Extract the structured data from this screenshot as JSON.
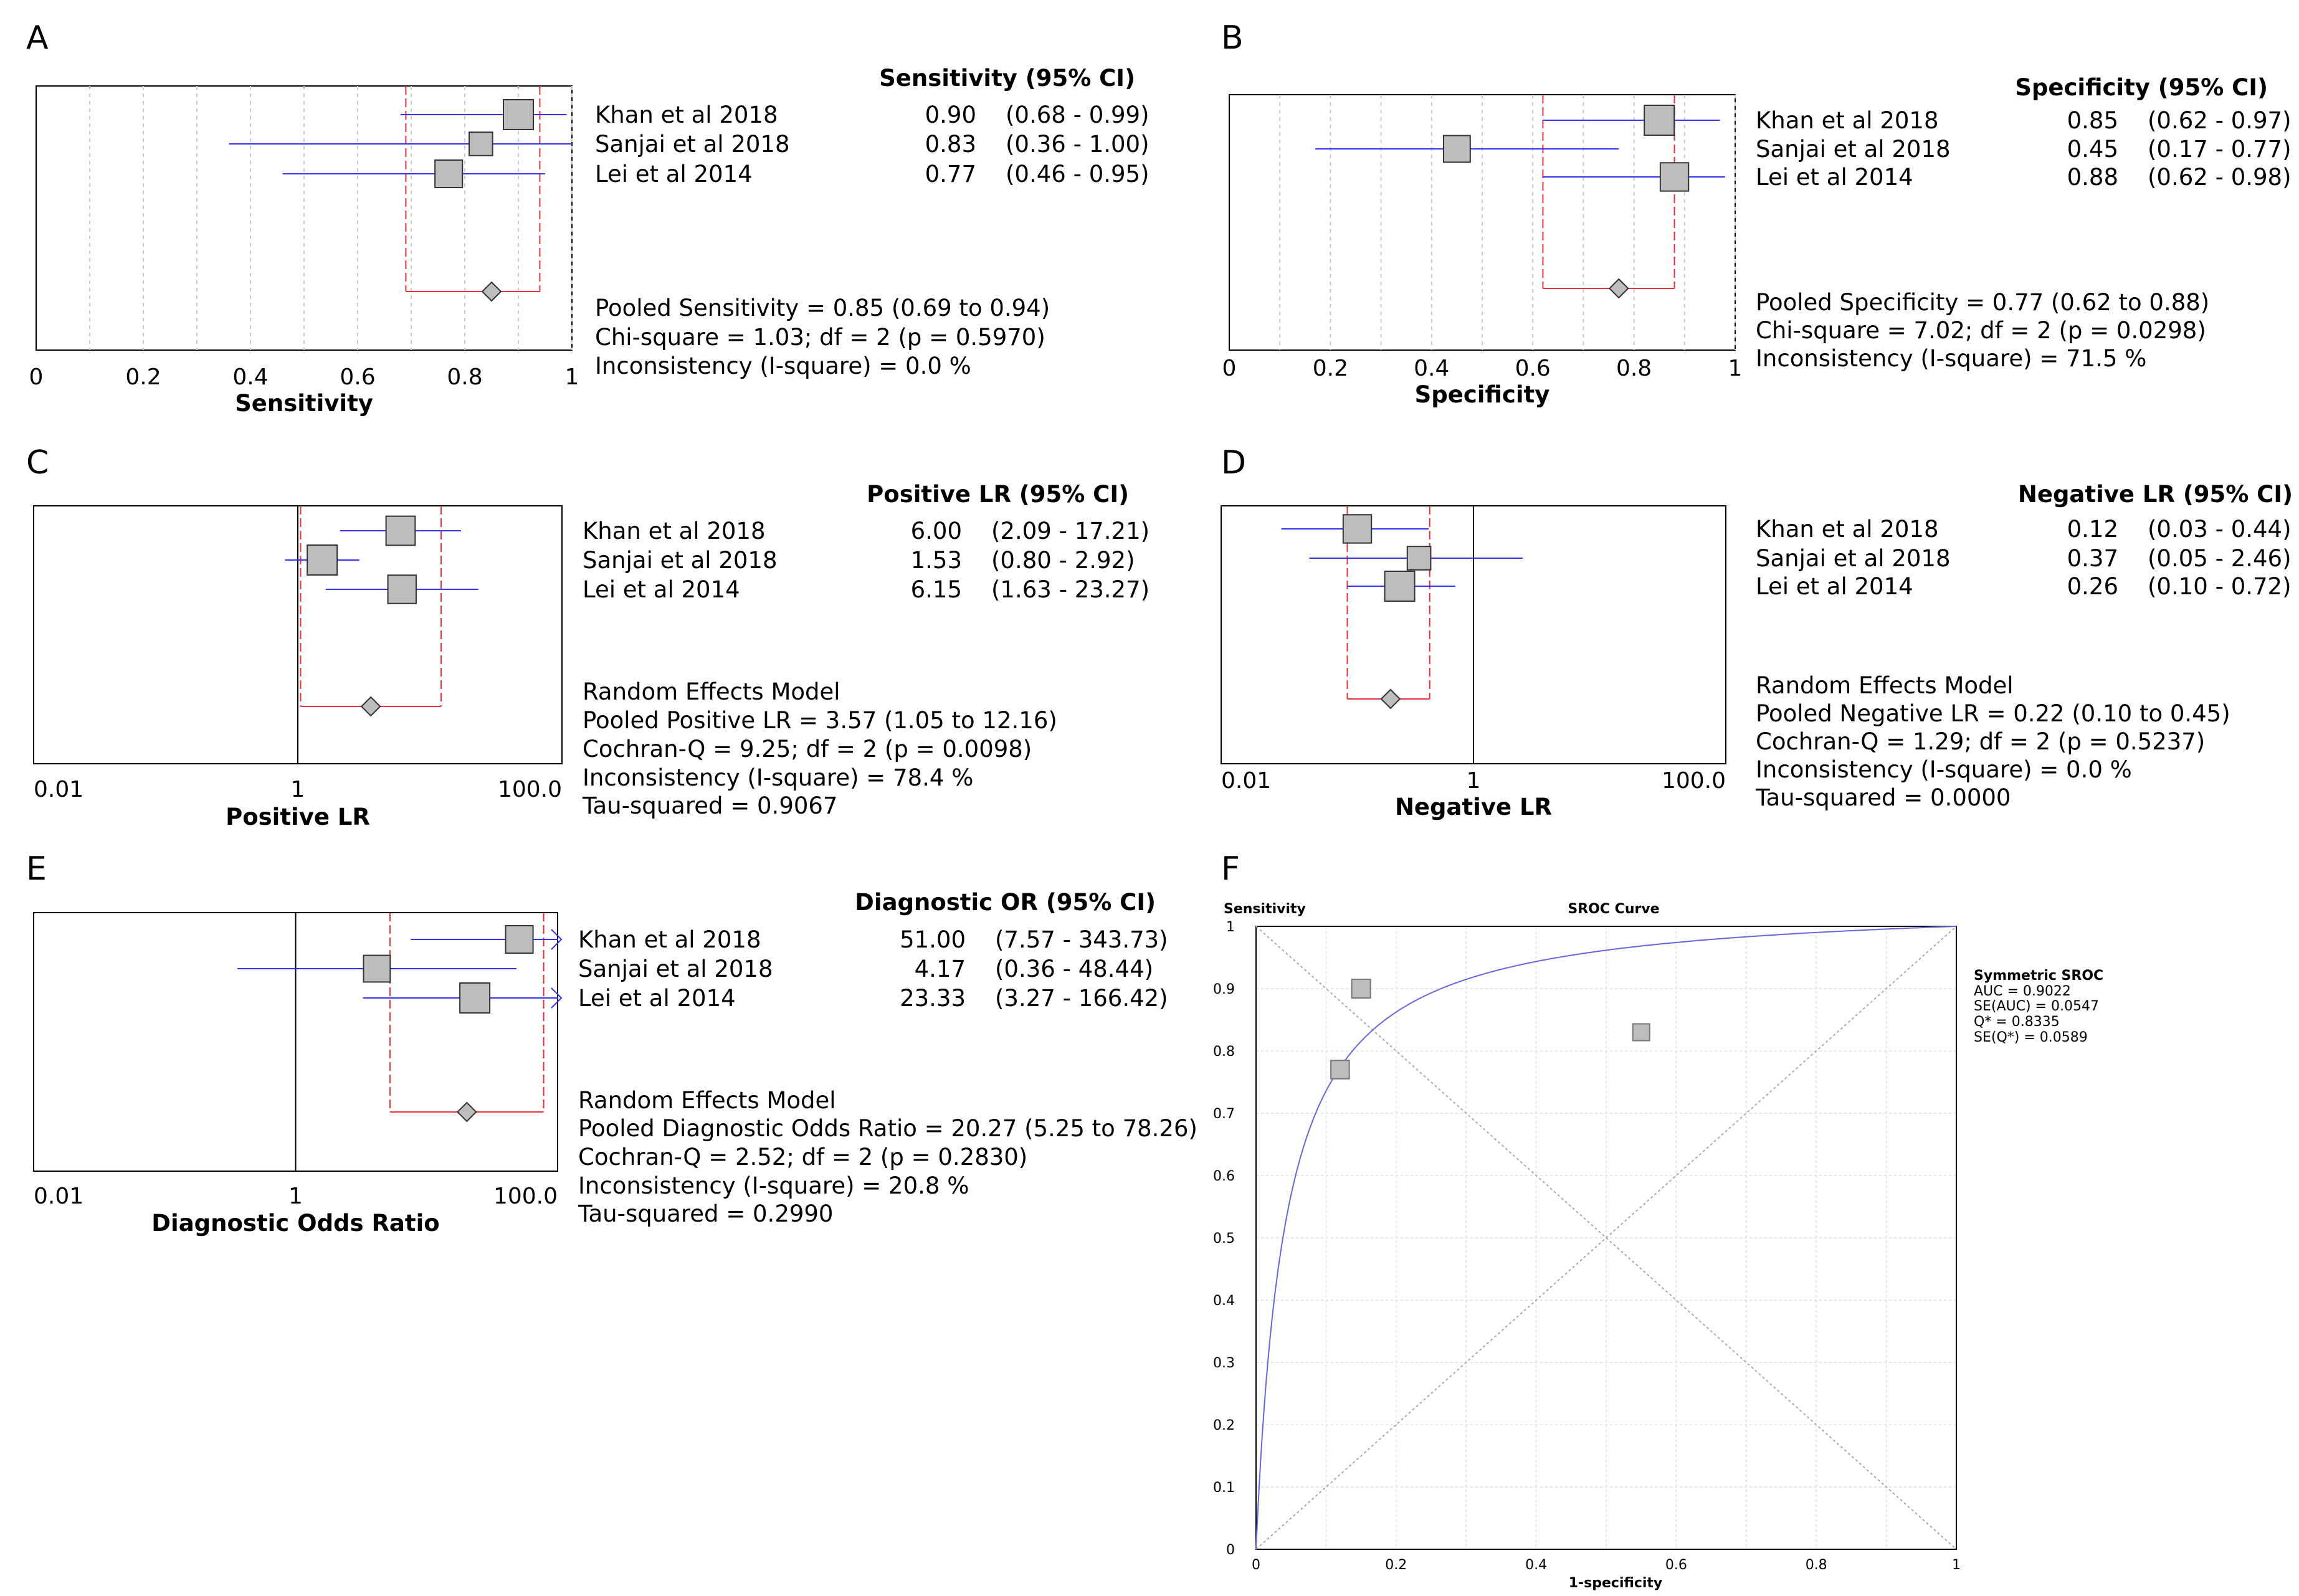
{
  "colors": {
    "ci_line": "#3333ee",
    "pooled_line": "#e8333b",
    "box_fill": "#bdbdbd",
    "box_stroke": "#333333",
    "grid": "#cccccc",
    "sroc_curve": "#6666dd"
  },
  "chart_data": [
    {
      "panel": "A",
      "type": "forest",
      "scale": "linear",
      "xlim": [
        0,
        1
      ],
      "ticks": [
        "0",
        "0.2",
        "0.4",
        "0.6",
        "0.8",
        "1"
      ],
      "tick_values": [
        0,
        0.2,
        0.4,
        0.6,
        0.8,
        1
      ],
      "xlabel": "Sensitivity",
      "header": "Sensitivity (95% CI)",
      "studies": [
        {
          "name": "Khan et al 2018",
          "est": 0.9,
          "lo": 0.68,
          "hi": 0.99,
          "est_text": "0.90",
          "ci_text": "(0.68 - 0.99)",
          "weight": 1.0
        },
        {
          "name": "Sanjai et al 2018",
          "est": 0.83,
          "lo": 0.36,
          "hi": 1.0,
          "est_text": "0.83",
          "ci_text": "(0.36 - 1.00)",
          "weight": 0.6
        },
        {
          "name": "Lei et al 2014",
          "est": 0.77,
          "lo": 0.46,
          "hi": 0.95,
          "est_text": "0.77",
          "ci_text": "(0.46 - 0.95)",
          "weight": 0.85
        }
      ],
      "pooled": {
        "est": 0.85,
        "lo": 0.69,
        "hi": 0.94
      },
      "stats": [
        "Pooled Sensitivity = 0.85 (0.69 to 0.94)",
        "Chi-square = 1.03; df =  2 (p = 0.5970)",
        "Inconsistency (I-square) = 0.0 %"
      ]
    },
    {
      "panel": "B",
      "type": "forest",
      "scale": "linear",
      "xlim": [
        0,
        1
      ],
      "ticks": [
        "0",
        "0.2",
        "0.4",
        "0.6",
        "0.8",
        "1"
      ],
      "tick_values": [
        0,
        0.2,
        0.4,
        0.6,
        0.8,
        1
      ],
      "xlabel": "Specificity",
      "header": "Specificity (95% CI)",
      "studies": [
        {
          "name": "Khan et al 2018",
          "est": 0.85,
          "lo": 0.62,
          "hi": 0.97,
          "est_text": "0.85",
          "ci_text": "(0.62 - 0.97)",
          "weight": 1.0
        },
        {
          "name": "Sanjai et al 2018",
          "est": 0.45,
          "lo": 0.17,
          "hi": 0.77,
          "est_text": "0.45",
          "ci_text": "(0.17 - 0.77)",
          "weight": 0.8
        },
        {
          "name": "Lei et al 2014",
          "est": 0.88,
          "lo": 0.62,
          "hi": 0.98,
          "est_text": "0.88",
          "ci_text": "(0.62 - 0.98)",
          "weight": 0.9
        }
      ],
      "pooled": {
        "est": 0.77,
        "lo": 0.62,
        "hi": 0.88
      },
      "stats": [
        "Pooled Specificity = 0.77 (0.62 to 0.88)",
        "Chi-square = 7.02; df =  2 (p = 0.0298)",
        "Inconsistency (I-square) = 71.5 %"
      ]
    },
    {
      "panel": "C",
      "type": "forest",
      "scale": "log",
      "xlim": [
        0.01,
        100
      ],
      "ticks": [
        "0.01",
        "1",
        "100.0"
      ],
      "tick_values": [
        0.01,
        1,
        100
      ],
      "null_line": 1,
      "xlabel": "Positive LR",
      "header": "Positive LR (95% CI)",
      "studies": [
        {
          "name": "Khan et al 2018",
          "est": 6.0,
          "lo": 2.09,
          "hi": 17.21,
          "est_text": "6.00",
          "ci_text": "(2.09 - 17.21)",
          "weight": 0.95
        },
        {
          "name": "Sanjai et al 2018",
          "est": 1.53,
          "lo": 0.8,
          "hi": 2.92,
          "est_text": "1.53",
          "ci_text": "(0.80 - 2.92)",
          "weight": 1.0
        },
        {
          "name": "Lei et al 2014",
          "est": 6.15,
          "lo": 1.63,
          "hi": 23.27,
          "est_text": "6.15",
          "ci_text": "(1.63 - 23.27)",
          "weight": 0.9
        }
      ],
      "pooled": {
        "est": 3.57,
        "lo": 1.05,
        "hi": 12.16
      },
      "stats": [
        "Random Effects Model",
        "Pooled Positive LR = 3.57 (1.05 to 12.16)",
        "Cochran-Q = 9.25; df =  2 (p = 0.0098)",
        "Inconsistency (I-square) = 78.4 %",
        "Tau-squared = 0.9067"
      ]
    },
    {
      "panel": "D",
      "type": "forest",
      "scale": "log",
      "xlim": [
        0.01,
        100
      ],
      "ticks": [
        "0.01",
        "1",
        "100.0"
      ],
      "tick_values": [
        0.01,
        1,
        100
      ],
      "null_line": 1,
      "xlabel": "Negative LR",
      "header": "Negative LR (95% CI)",
      "studies": [
        {
          "name": "Khan et al 2018",
          "est": 0.12,
          "lo": 0.03,
          "hi": 0.44,
          "est_text": "0.12",
          "ci_text": "(0.03 - 0.44)",
          "weight": 0.9
        },
        {
          "name": "Sanjai et al 2018",
          "est": 0.37,
          "lo": 0.05,
          "hi": 2.46,
          "est_text": "0.37",
          "ci_text": "(0.05 - 2.46)",
          "weight": 0.6
        },
        {
          "name": "Lei et al 2014",
          "est": 0.26,
          "lo": 0.1,
          "hi": 0.72,
          "est_text": "0.26",
          "ci_text": "(0.10 - 0.72)",
          "weight": 1.0
        }
      ],
      "pooled": {
        "est": 0.22,
        "lo": 0.1,
        "hi": 0.45
      },
      "stats": [
        "Random Effects Model",
        "Pooled Negative LR = 0.22 (0.10 to 0.45)",
        "Cochran-Q = 1.29; df =  2 (p = 0.5237)",
        "Inconsistency (I-square) = 0.0 %",
        "Tau-squared = 0.0000"
      ]
    },
    {
      "panel": "E",
      "type": "forest",
      "scale": "log",
      "xlim": [
        0.01,
        100
      ],
      "ticks": [
        "0.01",
        "1",
        "100.0"
      ],
      "tick_values": [
        0.01,
        1,
        100
      ],
      "null_line": 1,
      "xlabel": "Diagnostic Odds Ratio",
      "header": "Diagnostic OR (95% CI)",
      "studies": [
        {
          "name": "Khan et al 2018",
          "est": 51.0,
          "lo": 7.57,
          "hi": 343.73,
          "est_text": "51.00",
          "ci_text": "(7.57 - 343.73)",
          "weight": 0.85
        },
        {
          "name": "Sanjai et al 2018",
          "est": 4.17,
          "lo": 0.36,
          "hi": 48.44,
          "est_text": "4.17",
          "ci_text": "(0.36 - 48.44)",
          "weight": 0.8
        },
        {
          "name": "Lei et al 2014",
          "est": 23.33,
          "lo": 3.27,
          "hi": 166.42,
          "est_text": "23.33",
          "ci_text": "(3.27 - 166.42)",
          "weight": 1.0
        }
      ],
      "pooled": {
        "est": 20.27,
        "lo": 5.25,
        "hi": 78.26
      },
      "stats": [
        "Random Effects Model",
        "Pooled Diagnostic Odds Ratio = 20.27 (5.25 to 78.26)",
        "Cochran-Q = 2.52; df =  2 (p = 0.2830)",
        "Inconsistency (I-square) = 20.8 %",
        "Tau-squared = 0.2990"
      ]
    },
    {
      "panel": "F",
      "type": "sroc",
      "title": "SROC Curve",
      "ylabel": "Sensitivity",
      "xlabel": "1-specificity",
      "xlim": [
        0,
        1
      ],
      "ylim": [
        0,
        1
      ],
      "x_ticks": [
        "0",
        "0.2",
        "0.4",
        "0.6",
        "0.8",
        "1"
      ],
      "y_ticks": [
        "0",
        "0.1",
        "0.2",
        "0.3",
        "0.4",
        "0.5",
        "0.6",
        "0.7",
        "0.8",
        "0.9",
        "1"
      ],
      "points": [
        {
          "x": 0.15,
          "y": 0.9,
          "weight": 1.0
        },
        {
          "x": 0.12,
          "y": 0.77,
          "weight": 0.95
        },
        {
          "x": 0.55,
          "y": 0.83,
          "weight": 0.7
        }
      ],
      "q_star": 0.8335,
      "legend": [
        "Symmetric SROC",
        "AUC = 0.9022",
        "SE(AUC) = 0.0547",
        "Q* = 0.8335",
        "SE(Q*) = 0.0589"
      ]
    }
  ]
}
